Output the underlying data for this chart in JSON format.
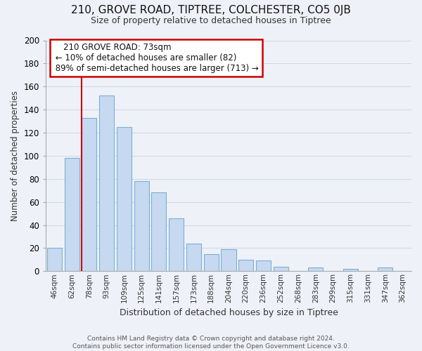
{
  "title": "210, GROVE ROAD, TIPTREE, COLCHESTER, CO5 0JB",
  "subtitle": "Size of property relative to detached houses in Tiptree",
  "xlabel": "Distribution of detached houses by size in Tiptree",
  "ylabel": "Number of detached properties",
  "bar_labels": [
    "46sqm",
    "62sqm",
    "78sqm",
    "93sqm",
    "109sqm",
    "125sqm",
    "141sqm",
    "157sqm",
    "173sqm",
    "188sqm",
    "204sqm",
    "220sqm",
    "236sqm",
    "252sqm",
    "268sqm",
    "283sqm",
    "299sqm",
    "315sqm",
    "331sqm",
    "347sqm",
    "362sqm"
  ],
  "bar_values": [
    20,
    98,
    133,
    152,
    125,
    78,
    68,
    46,
    24,
    15,
    19,
    10,
    9,
    4,
    0,
    3,
    0,
    2,
    0,
    3,
    0
  ],
  "bar_color": "#c6d9f0",
  "bar_edge_color": "#7bafd4",
  "highlight_color": "#cc0000",
  "annotation_title": "210 GROVE ROAD: 73sqm",
  "annotation_line1": "← 10% of detached houses are smaller (82)",
  "annotation_line2": "89% of semi-detached houses are larger (713) →",
  "annotation_box_color": "#ffffff",
  "annotation_box_edge": "#cc0000",
  "ylim": [
    0,
    200
  ],
  "yticks": [
    0,
    20,
    40,
    60,
    80,
    100,
    120,
    140,
    160,
    180,
    200
  ],
  "grid_color": "#d0d8e8",
  "background_color": "#eef2f8",
  "footer_line1": "Contains HM Land Registry data © Crown copyright and database right 2024.",
  "footer_line2": "Contains public sector information licensed under the Open Government Licence v3.0."
}
